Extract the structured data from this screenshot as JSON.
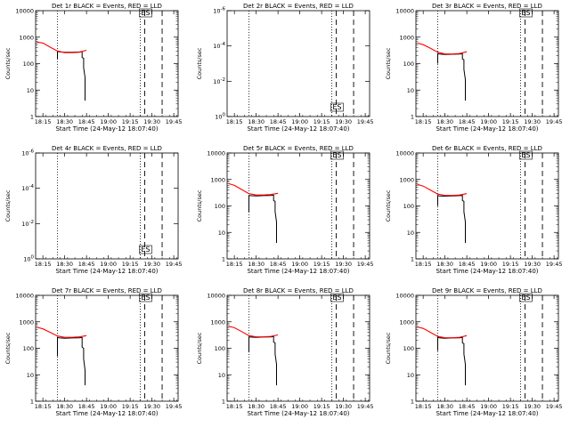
{
  "figure": {
    "time_ticks": [
      "18:15",
      "18:30",
      "18:45",
      "19:00",
      "19:15",
      "19:30",
      "19:45"
    ],
    "x_label": "Start Time (24-May-12 18:07:40)",
    "y_label": "Counts/sec",
    "log_ticks": [
      "1",
      "10",
      "100",
      "1000",
      "10000"
    ],
    "exp_ticks": [
      "10^-6",
      "10^-4",
      "10^-2",
      "10^0"
    ],
    "marker_label": "ES",
    "colors": {
      "events": "#000000",
      "lld": "#ff0000",
      "axes": "#000000",
      "background": "#ffffff"
    }
  },
  "chart_data": [
    {
      "type": "line",
      "title": "Det 1r BLACK = Events, RED = LLD",
      "xlabel": "Start Time (24-May-12 18:07:40)",
      "ylabel": "Counts/sec",
      "y_scale": "log",
      "ylim": [
        1,
        10000
      ],
      "xlim_minutes_since_1807": [
        3,
        101
      ],
      "vlines_dotted": [
        "18:25",
        "19:22"
      ],
      "vlines_dashed": [
        "19:25",
        "19:37"
      ],
      "marker": "ES",
      "series": [
        {
          "name": "Events",
          "color": "#000000",
          "x": [
            "18:25",
            "18:25",
            "18:26",
            "18:30",
            "18:35",
            "18:40",
            "18:42",
            "18:42",
            "18:43",
            "18:43",
            "18:44",
            "18:44"
          ],
          "y": [
            150,
            290,
            280,
            270,
            270,
            275,
            280,
            170,
            160,
            70,
            30,
            4
          ]
        },
        {
          "name": "LLD",
          "color": "#ff0000",
          "x": [
            "18:11",
            "18:15",
            "18:20",
            "18:25",
            "18:30",
            "18:35",
            "18:40",
            "18:45"
          ],
          "y": [
            650,
            600,
            420,
            300,
            260,
            260,
            270,
            320
          ]
        }
      ]
    },
    {
      "type": "line",
      "title": "Det 2r BLACK = Events, RED = LLD",
      "xlabel": "Start Time (24-May-12 18:07:40)",
      "ylabel": "Counts/sec",
      "y_scale": "log",
      "ylim": [
        1,
        1000000
      ],
      "vlines_dotted": [
        "18:25",
        "19:22"
      ],
      "vlines_dashed": [
        "19:25",
        "19:37"
      ],
      "marker": "ES",
      "series": []
    },
    {
      "type": "line",
      "title": "Det 3r BLACK = Events, RED = LLD",
      "xlabel": "Start Time (24-May-12 18:07:40)",
      "ylabel": "Counts/sec",
      "y_scale": "log",
      "ylim": [
        1,
        10000
      ],
      "vlines_dotted": [
        "18:25",
        "19:22"
      ],
      "vlines_dashed": [
        "19:25",
        "19:37"
      ],
      "marker": "ES",
      "series": [
        {
          "name": "Events",
          "color": "#000000",
          "x": [
            "18:25",
            "18:25",
            "18:26",
            "18:30",
            "18:35",
            "18:40",
            "18:42",
            "18:42",
            "18:43",
            "18:43",
            "18:44",
            "18:44"
          ],
          "y": [
            100,
            240,
            230,
            220,
            225,
            230,
            235,
            150,
            140,
            60,
            25,
            4
          ]
        },
        {
          "name": "LLD",
          "color": "#ff0000",
          "x": [
            "18:11",
            "18:15",
            "18:20",
            "18:25",
            "18:30",
            "18:35",
            "18:40",
            "18:45"
          ],
          "y": [
            600,
            520,
            380,
            270,
            230,
            230,
            240,
            280
          ]
        }
      ]
    },
    {
      "type": "line",
      "title": "Det 4r BLACK = Events, RED = LLD",
      "xlabel": "Start Time (24-May-12 18:07:40)",
      "ylabel": "Counts/sec",
      "y_scale": "log",
      "ylim": [
        1,
        1000000
      ],
      "vlines_dotted": [
        "18:25",
        "19:22"
      ],
      "vlines_dashed": [
        "19:25",
        "19:37"
      ],
      "marker": "ES",
      "series": []
    },
    {
      "type": "line",
      "title": "Det 5r BLACK = Events, RED = LLD",
      "xlabel": "Start Time (24-May-12 18:07:40)",
      "ylabel": "Counts/sec",
      "y_scale": "log",
      "ylim": [
        1,
        10000
      ],
      "vlines_dotted": [
        "18:25",
        "19:22"
      ],
      "vlines_dashed": [
        "19:25",
        "19:37"
      ],
      "marker": "ES",
      "series": [
        {
          "name": "Events",
          "color": "#000000",
          "x": [
            "18:25",
            "18:25",
            "18:26",
            "18:30",
            "18:35",
            "18:40",
            "18:42",
            "18:42",
            "18:43",
            "18:43",
            "18:44",
            "18:44"
          ],
          "y": [
            60,
            250,
            245,
            240,
            245,
            250,
            255,
            160,
            150,
            60,
            25,
            4
          ]
        },
        {
          "name": "LLD",
          "color": "#ff0000",
          "x": [
            "18:11",
            "18:15",
            "18:20",
            "18:25",
            "18:30",
            "18:35",
            "18:40",
            "18:45"
          ],
          "y": [
            700,
            600,
            420,
            290,
            260,
            260,
            270,
            300
          ]
        }
      ]
    },
    {
      "type": "line",
      "title": "Det 6r BLACK = Events, RED = LLD",
      "xlabel": "Start Time (24-May-12 18:07:40)",
      "ylabel": "Counts/sec",
      "y_scale": "log",
      "ylim": [
        1,
        10000
      ],
      "vlines_dotted": [
        "18:25",
        "19:22"
      ],
      "vlines_dashed": [
        "19:25",
        "19:37"
      ],
      "marker": "ES",
      "series": [
        {
          "name": "Events",
          "color": "#000000",
          "x": [
            "18:25",
            "18:25",
            "18:26",
            "18:30",
            "18:35",
            "18:40",
            "18:42",
            "18:42",
            "18:43",
            "18:43",
            "18:44",
            "18:44"
          ],
          "y": [
            100,
            250,
            240,
            235,
            240,
            245,
            250,
            160,
            150,
            60,
            25,
            4
          ]
        },
        {
          "name": "LLD",
          "color": "#ff0000",
          "x": [
            "18:11",
            "18:15",
            "18:20",
            "18:25",
            "18:30",
            "18:35",
            "18:40",
            "18:45"
          ],
          "y": [
            650,
            560,
            400,
            280,
            250,
            250,
            260,
            290
          ]
        }
      ]
    },
    {
      "type": "line",
      "title": "Det 7r BLACK = Events, RED = LLD",
      "xlabel": "Start Time (24-May-12 18:07:40)",
      "ylabel": "Counts/sec",
      "y_scale": "log",
      "ylim": [
        1,
        10000
      ],
      "vlines_dotted": [
        "18:25",
        "19:22"
      ],
      "vlines_dashed": [
        "19:25",
        "19:37"
      ],
      "marker": "ES",
      "series": [
        {
          "name": "Events",
          "color": "#000000",
          "x": [
            "18:25",
            "18:25",
            "18:26",
            "18:30",
            "18:35",
            "18:40",
            "18:42",
            "18:42",
            "18:43",
            "18:43",
            "18:44",
            "18:44"
          ],
          "y": [
            50,
            260,
            250,
            240,
            245,
            250,
            255,
            110,
            100,
            40,
            15,
            4
          ]
        },
        {
          "name": "LLD",
          "color": "#ff0000",
          "x": [
            "18:11",
            "18:15",
            "18:20",
            "18:25",
            "18:30",
            "18:35",
            "18:40",
            "18:45"
          ],
          "y": [
            620,
            540,
            400,
            290,
            260,
            260,
            270,
            300
          ]
        }
      ]
    },
    {
      "type": "line",
      "title": "Det 8r BLACK = Events, RED = LLD",
      "xlabel": "Start Time (24-May-12 18:07:40)",
      "ylabel": "Counts/sec",
      "y_scale": "log",
      "ylim": [
        1,
        10000
      ],
      "vlines_dotted": [
        "18:25",
        "19:22"
      ],
      "vlines_dashed": [
        "19:25",
        "19:37"
      ],
      "marker": "ES",
      "series": [
        {
          "name": "Events",
          "color": "#000000",
          "x": [
            "18:25",
            "18:25",
            "18:26",
            "18:30",
            "18:35",
            "18:40",
            "18:42",
            "18:42",
            "18:43",
            "18:43",
            "18:44",
            "18:44"
          ],
          "y": [
            70,
            270,
            265,
            260,
            265,
            270,
            275,
            170,
            160,
            60,
            25,
            4
          ]
        },
        {
          "name": "LLD",
          "color": "#ff0000",
          "x": [
            "18:11",
            "18:15",
            "18:20",
            "18:25",
            "18:30",
            "18:35",
            "18:40",
            "18:45"
          ],
          "y": [
            680,
            600,
            430,
            300,
            270,
            270,
            280,
            320
          ]
        }
      ]
    },
    {
      "type": "line",
      "title": "Det 9r BLACK = Events, RED = LLD",
      "xlabel": "Start Time (24-May-12 18:07:40)",
      "ylabel": "Counts/sec",
      "y_scale": "log",
      "ylim": [
        1,
        10000
      ],
      "vlines_dotted": [
        "18:25",
        "19:22"
      ],
      "vlines_dashed": [
        "19:25",
        "19:37"
      ],
      "marker": "ES",
      "series": [
        {
          "name": "Events",
          "color": "#000000",
          "x": [
            "18:25",
            "18:25",
            "18:26",
            "18:30",
            "18:35",
            "18:40",
            "18:42",
            "18:42",
            "18:43",
            "18:43",
            "18:44",
            "18:44"
          ],
          "y": [
            80,
            260,
            250,
            240,
            245,
            250,
            255,
            160,
            150,
            60,
            25,
            4
          ]
        },
        {
          "name": "LLD",
          "color": "#ff0000",
          "x": [
            "18:11",
            "18:15",
            "18:20",
            "18:25",
            "18:30",
            "18:35",
            "18:40",
            "18:45"
          ],
          "y": [
            640,
            560,
            400,
            280,
            250,
            250,
            260,
            300
          ]
        }
      ]
    }
  ]
}
